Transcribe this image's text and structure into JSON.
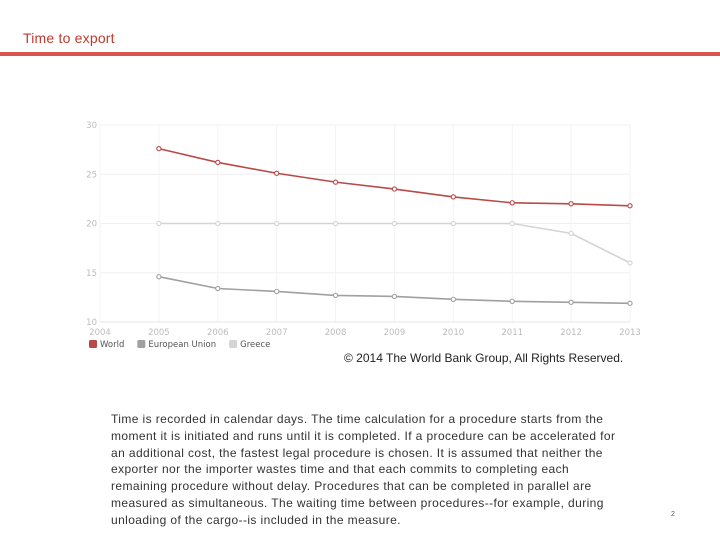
{
  "slide": {
    "title": "Time to export",
    "copyright": "© 2014 The World Bank Group, All Rights Reserved.",
    "body": "Time is recorded in calendar days. The time calculation for a procedure starts from the moment it is initiated and runs until it is completed. If a procedure can be accelerated for an additional cost, the fastest legal procedure is chosen. It is assumed that neither the exporter nor the importer wastes time and that each commits to completing each remaining procedure without delay. Procedures that can be completed in parallel are measured as simultaneous. The waiting time between procedures--for example, during unloading of the cargo--is included in the measure.",
    "page_number": "2"
  },
  "chart_data": {
    "type": "line",
    "title": "",
    "xlabel": "",
    "ylabel": "",
    "x": [
      2004,
      2005,
      2006,
      2007,
      2008,
      2009,
      2010,
      2011,
      2012,
      2013
    ],
    "xlim": [
      2004,
      2013
    ],
    "ylim": [
      10,
      30
    ],
    "yticks": [
      10,
      15,
      20,
      25,
      30
    ],
    "grid": true,
    "legend_position": "bottom-left",
    "series": [
      {
        "name": "World",
        "color": "#b94a48",
        "x": [
          2005,
          2006,
          2007,
          2008,
          2009,
          2010,
          2011,
          2012,
          2013
        ],
        "values": [
          27.6,
          26.2,
          25.1,
          24.2,
          23.5,
          22.7,
          22.1,
          22.0,
          21.8
        ]
      },
      {
        "name": "European Union",
        "color": "#a0a0a0",
        "x": [
          2005,
          2006,
          2007,
          2008,
          2009,
          2010,
          2011,
          2012,
          2013
        ],
        "values": [
          14.6,
          13.4,
          13.1,
          12.7,
          12.6,
          12.3,
          12.1,
          12.0,
          11.9
        ]
      },
      {
        "name": "Greece",
        "color": "#d4d4d4",
        "x": [
          2005,
          2006,
          2007,
          2008,
          2009,
          2010,
          2011,
          2012,
          2013
        ],
        "values": [
          20,
          20,
          20,
          20,
          20,
          20,
          20,
          19,
          16
        ]
      }
    ]
  }
}
